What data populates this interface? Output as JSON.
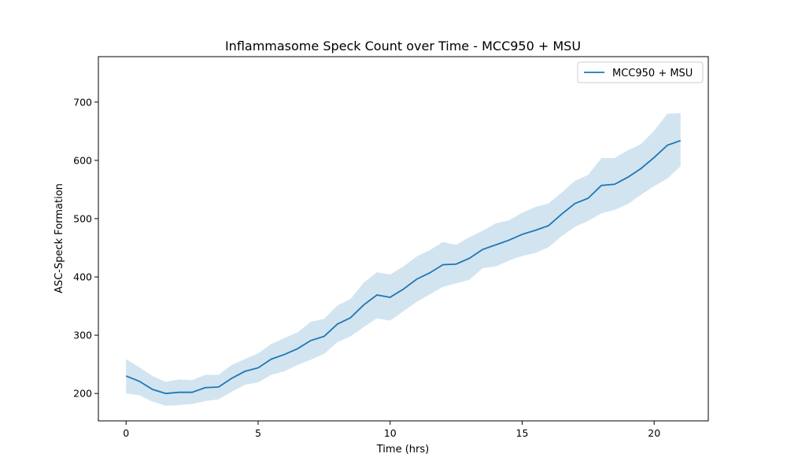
{
  "chart_data": {
    "type": "line",
    "title": "Inflammasome Speck Count over Time - MCC950 + MSU",
    "xlabel": "Time (hrs)",
    "ylabel": "ASC-Speck Formation",
    "xlim": [
      -1.05,
      22.05
    ],
    "ylim": [
      153,
      778
    ],
    "xticks": [
      0,
      5,
      10,
      15,
      20
    ],
    "yticks": [
      200,
      300,
      400,
      500,
      600,
      700
    ],
    "grid": false,
    "legend_position": "top-right",
    "line_color": "#1f77b4",
    "band_color": "#1f77b4",
    "series": [
      {
        "name": "MCC950 + MSU",
        "x": [
          0,
          0.5,
          1,
          1.5,
          2,
          2.5,
          3,
          3.5,
          4,
          4.5,
          5,
          5.5,
          6,
          6.5,
          7,
          7.5,
          8,
          8.5,
          9,
          9.5,
          10,
          10.5,
          11,
          11.5,
          12,
          12.5,
          13,
          13.5,
          14,
          14.5,
          15,
          15.5,
          16,
          16.5,
          17,
          17.5,
          18,
          18.5,
          19,
          19.5,
          20,
          20.5,
          21
        ],
        "values": [
          230,
          221,
          207,
          200,
          202,
          202,
          210,
          211,
          226,
          238,
          244,
          259,
          267,
          277,
          291,
          298,
          319,
          330,
          352,
          369,
          365,
          379,
          396,
          407,
          421,
          422,
          432,
          447,
          455,
          463,
          473,
          480,
          488,
          508,
          526,
          535,
          557,
          559,
          571,
          586,
          605,
          626,
          634
        ],
        "lower": [
          200,
          197,
          186,
          179,
          180,
          182,
          187,
          190,
          203,
          215,
          219,
          232,
          238,
          249,
          258,
          268,
          288,
          298,
          314,
          329,
          325,
          341,
          357,
          370,
          383,
          389,
          395,
          415,
          418,
          428,
          436,
          441,
          451,
          470,
          486,
          496,
          509,
          515,
          525,
          541,
          556,
          569,
          590
        ],
        "upper": [
          259,
          245,
          230,
          220,
          224,
          223,
          232,
          232,
          249,
          259,
          269,
          285,
          295,
          305,
          323,
          328,
          351,
          362,
          390,
          408,
          404,
          418,
          435,
          446,
          460,
          455,
          468,
          479,
          492,
          497,
          510,
          520,
          526,
          545,
          565,
          575,
          604,
          604,
          617,
          628,
          651,
          680,
          681
        ]
      }
    ]
  }
}
